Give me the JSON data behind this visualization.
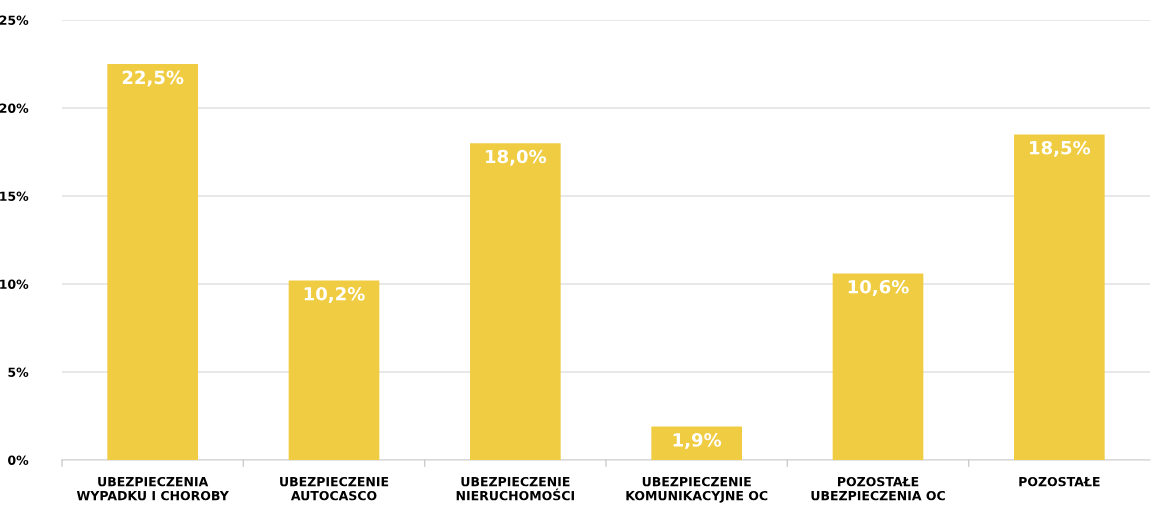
{
  "chart_data": {
    "type": "bar",
    "categories": [
      "UBEZPIECZENIA\nWYPADKU I CHOROBY",
      "UBEZPIECZENIE\nAUTOCASCO",
      "UBEZPIECZENIE\nNIERUCHOMOŚCI",
      "UBEZPIECZENIE\nKOMUNIKACYJNE OC",
      "POZOSTAŁE\nUBEZPIECZENIA OC",
      "POZOSTAŁE"
    ],
    "values": [
      22.5,
      10.2,
      18.0,
      1.9,
      10.6,
      18.5
    ],
    "value_labels": [
      "22,5%",
      "10,2%",
      "18,0%",
      "1,9%",
      "10,6%",
      "18,5%"
    ],
    "color": "#efcc42",
    "ylim": [
      0,
      25
    ],
    "yticks": [
      {
        "value": 0,
        "label": "0%"
      },
      {
        "value": 5,
        "label": "5%"
      },
      {
        "value": 10,
        "label": "10%"
      },
      {
        "value": 15,
        "label": "15%"
      },
      {
        "value": 20,
        "label": "20%"
      },
      {
        "value": 25,
        "label": "25%"
      }
    ],
    "grid": "y"
  }
}
